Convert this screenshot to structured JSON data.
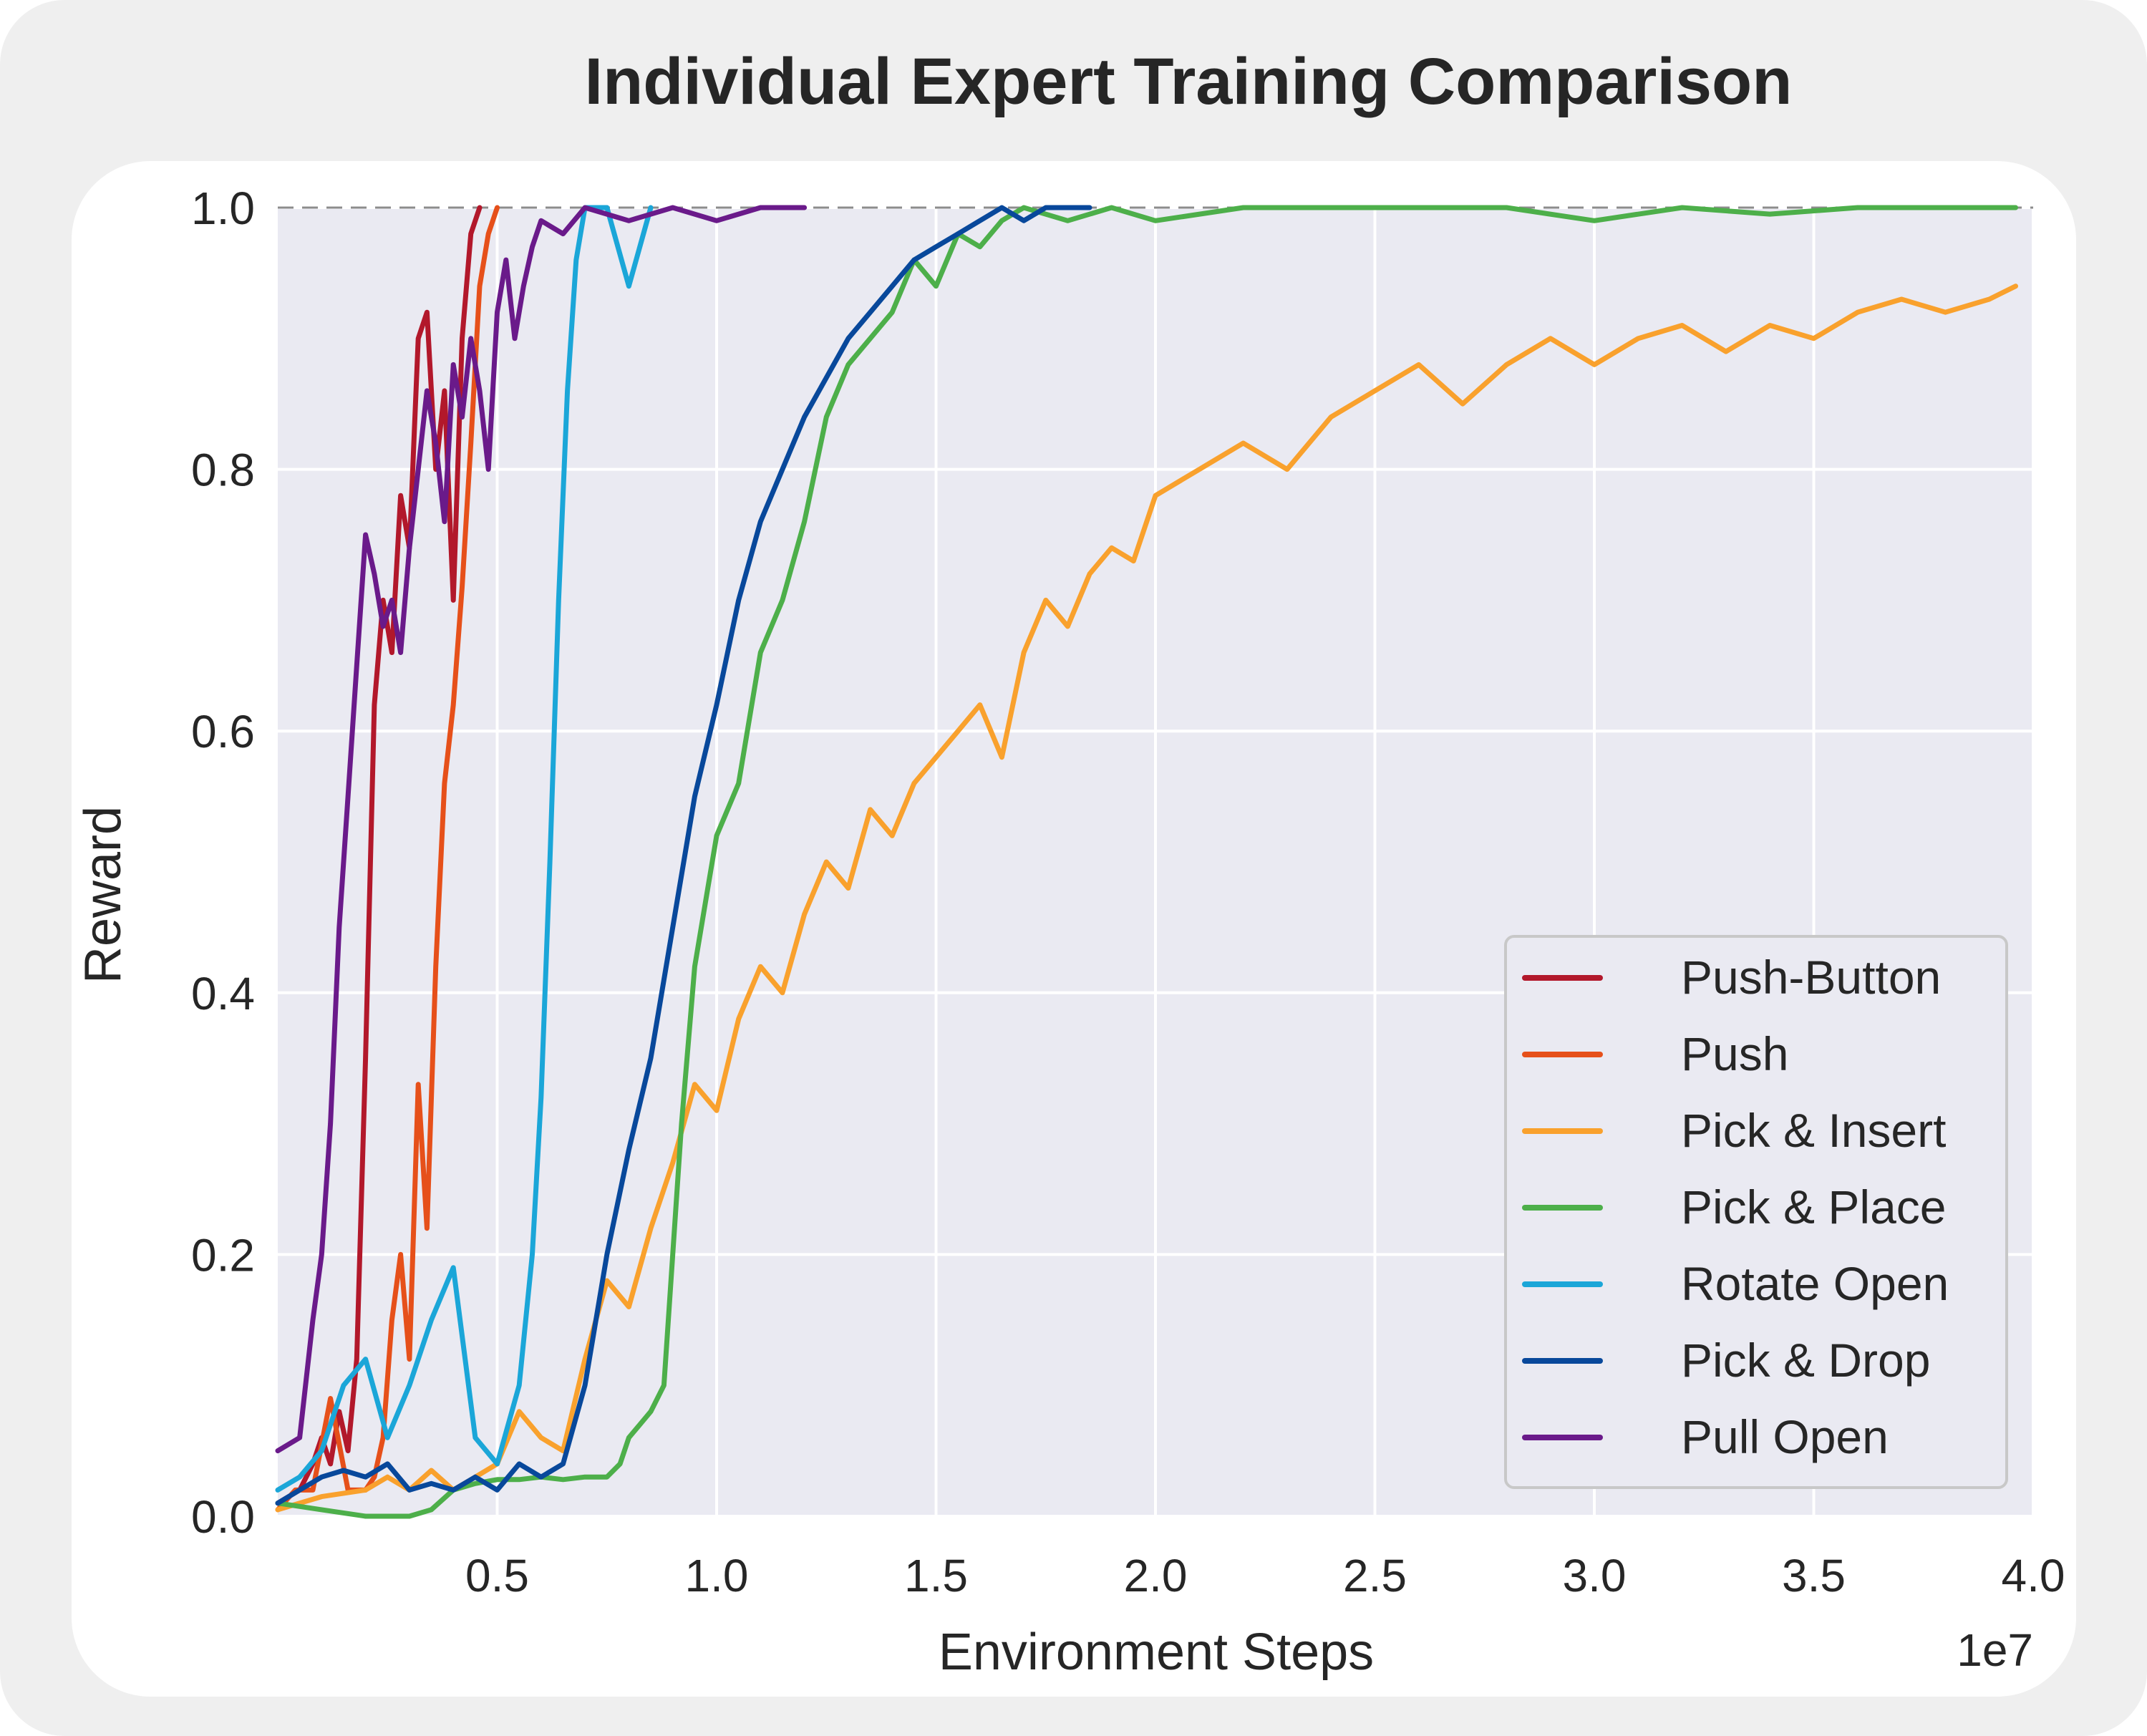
{
  "chart_data": {
    "type": "line",
    "title": "Individual Expert Training Comparison",
    "xlabel": "Environment Steps",
    "ylabel": "Reward",
    "x_offset_label": "1e7",
    "xlim": [
      0.0,
      4.0
    ],
    "ylim": [
      0.0,
      1.0
    ],
    "xticks": [
      "0.5",
      "1.0",
      "1.5",
      "2.0",
      "2.5",
      "3.0",
      "3.5",
      "4.0"
    ],
    "yticks": [
      "0.0",
      "0.2",
      "0.4",
      "0.6",
      "0.8",
      "1.0"
    ],
    "grid": true,
    "legend_position": "lower-right",
    "reference_line": 1.0,
    "series": [
      {
        "name": "Push-Button",
        "color": "#b2182b",
        "points": [
          [
            0.0,
            0.01
          ],
          [
            0.05,
            0.02
          ],
          [
            0.08,
            0.04
          ],
          [
            0.1,
            0.06
          ],
          [
            0.12,
            0.04
          ],
          [
            0.14,
            0.08
          ],
          [
            0.16,
            0.05
          ],
          [
            0.18,
            0.12
          ],
          [
            0.2,
            0.35
          ],
          [
            0.22,
            0.62
          ],
          [
            0.24,
            0.7
          ],
          [
            0.26,
            0.66
          ],
          [
            0.28,
            0.78
          ],
          [
            0.3,
            0.74
          ],
          [
            0.32,
            0.9
          ],
          [
            0.34,
            0.92
          ],
          [
            0.36,
            0.8
          ],
          [
            0.38,
            0.86
          ],
          [
            0.4,
            0.7
          ],
          [
            0.42,
            0.9
          ],
          [
            0.44,
            0.98
          ],
          [
            0.46,
            1.0
          ]
        ]
      },
      {
        "name": "Push",
        "color": "#e6501a",
        "points": [
          [
            0.0,
            0.005
          ],
          [
            0.04,
            0.02
          ],
          [
            0.08,
            0.02
          ],
          [
            0.12,
            0.09
          ],
          [
            0.16,
            0.02
          ],
          [
            0.2,
            0.02
          ],
          [
            0.22,
            0.03
          ],
          [
            0.24,
            0.06
          ],
          [
            0.26,
            0.15
          ],
          [
            0.28,
            0.2
          ],
          [
            0.3,
            0.12
          ],
          [
            0.32,
            0.33
          ],
          [
            0.34,
            0.22
          ],
          [
            0.36,
            0.42
          ],
          [
            0.38,
            0.56
          ],
          [
            0.4,
            0.62
          ],
          [
            0.42,
            0.71
          ],
          [
            0.44,
            0.82
          ],
          [
            0.46,
            0.94
          ],
          [
            0.48,
            0.98
          ],
          [
            0.5,
            1.0
          ]
        ]
      },
      {
        "name": "Pick & Insert",
        "color": "#f9a12d",
        "points": [
          [
            0.0,
            0.005
          ],
          [
            0.1,
            0.015
          ],
          [
            0.2,
            0.02
          ],
          [
            0.25,
            0.03
          ],
          [
            0.3,
            0.02
          ],
          [
            0.35,
            0.035
          ],
          [
            0.4,
            0.02
          ],
          [
            0.45,
            0.03
          ],
          [
            0.5,
            0.04
          ],
          [
            0.55,
            0.08
          ],
          [
            0.6,
            0.06
          ],
          [
            0.65,
            0.05
          ],
          [
            0.7,
            0.12
          ],
          [
            0.75,
            0.18
          ],
          [
            0.8,
            0.16
          ],
          [
            0.85,
            0.22
          ],
          [
            0.9,
            0.27
          ],
          [
            0.95,
            0.33
          ],
          [
            1.0,
            0.31
          ],
          [
            1.05,
            0.38
          ],
          [
            1.1,
            0.42
          ],
          [
            1.15,
            0.4
          ],
          [
            1.2,
            0.46
          ],
          [
            1.25,
            0.5
          ],
          [
            1.3,
            0.48
          ],
          [
            1.35,
            0.54
          ],
          [
            1.4,
            0.52
          ],
          [
            1.45,
            0.56
          ],
          [
            1.5,
            0.58
          ],
          [
            1.55,
            0.6
          ],
          [
            1.6,
            0.62
          ],
          [
            1.65,
            0.58
          ],
          [
            1.7,
            0.66
          ],
          [
            1.75,
            0.7
          ],
          [
            1.8,
            0.68
          ],
          [
            1.85,
            0.72
          ],
          [
            1.9,
            0.74
          ],
          [
            1.95,
            0.73
          ],
          [
            2.0,
            0.78
          ],
          [
            2.1,
            0.8
          ],
          [
            2.2,
            0.82
          ],
          [
            2.3,
            0.8
          ],
          [
            2.4,
            0.84
          ],
          [
            2.5,
            0.86
          ],
          [
            2.6,
            0.88
          ],
          [
            2.7,
            0.85
          ],
          [
            2.8,
            0.88
          ],
          [
            2.9,
            0.9
          ],
          [
            3.0,
            0.88
          ],
          [
            3.1,
            0.9
          ],
          [
            3.2,
            0.91
          ],
          [
            3.3,
            0.89
          ],
          [
            3.4,
            0.91
          ],
          [
            3.5,
            0.9
          ],
          [
            3.6,
            0.92
          ],
          [
            3.7,
            0.93
          ],
          [
            3.8,
            0.92
          ],
          [
            3.9,
            0.93
          ],
          [
            3.96,
            0.94
          ]
        ]
      },
      {
        "name": "Pick & Place",
        "color": "#4daf4a",
        "points": [
          [
            0.0,
            0.01
          ],
          [
            0.1,
            0.005
          ],
          [
            0.2,
            0.0
          ],
          [
            0.3,
            0.0
          ],
          [
            0.35,
            0.005
          ],
          [
            0.4,
            0.02
          ],
          [
            0.45,
            0.025
          ],
          [
            0.5,
            0.028
          ],
          [
            0.55,
            0.028
          ],
          [
            0.6,
            0.03
          ],
          [
            0.65,
            0.028
          ],
          [
            0.7,
            0.03
          ],
          [
            0.75,
            0.03
          ],
          [
            0.78,
            0.04
          ],
          [
            0.8,
            0.06
          ],
          [
            0.85,
            0.08
          ],
          [
            0.88,
            0.1
          ],
          [
            0.9,
            0.2
          ],
          [
            0.92,
            0.3
          ],
          [
            0.95,
            0.42
          ],
          [
            0.98,
            0.48
          ],
          [
            1.0,
            0.52
          ],
          [
            1.05,
            0.56
          ],
          [
            1.1,
            0.66
          ],
          [
            1.15,
            0.7
          ],
          [
            1.2,
            0.76
          ],
          [
            1.25,
            0.84
          ],
          [
            1.3,
            0.88
          ],
          [
            1.35,
            0.9
          ],
          [
            1.4,
            0.92
          ],
          [
            1.45,
            0.96
          ],
          [
            1.5,
            0.94
          ],
          [
            1.55,
            0.98
          ],
          [
            1.6,
            0.97
          ],
          [
            1.65,
            0.99
          ],
          [
            1.7,
            1.0
          ],
          [
            1.8,
            0.99
          ],
          [
            1.9,
            1.0
          ],
          [
            2.0,
            0.99
          ],
          [
            2.2,
            1.0
          ],
          [
            2.4,
            1.0
          ],
          [
            2.6,
            1.0
          ],
          [
            2.8,
            1.0
          ],
          [
            3.0,
            0.99
          ],
          [
            3.2,
            1.0
          ],
          [
            3.4,
            0.995
          ],
          [
            3.6,
            1.0
          ],
          [
            3.8,
            1.0
          ],
          [
            3.96,
            1.0
          ]
        ]
      },
      {
        "name": "Rotate Open",
        "color": "#1ba6d8",
        "points": [
          [
            0.0,
            0.02
          ],
          [
            0.05,
            0.03
          ],
          [
            0.1,
            0.05
          ],
          [
            0.15,
            0.1
          ],
          [
            0.2,
            0.12
          ],
          [
            0.25,
            0.06
          ],
          [
            0.3,
            0.1
          ],
          [
            0.35,
            0.15
          ],
          [
            0.4,
            0.19
          ],
          [
            0.45,
            0.06
          ],
          [
            0.5,
            0.04
          ],
          [
            0.55,
            0.1
          ],
          [
            0.58,
            0.2
          ],
          [
            0.6,
            0.32
          ],
          [
            0.62,
            0.5
          ],
          [
            0.64,
            0.7
          ],
          [
            0.66,
            0.86
          ],
          [
            0.68,
            0.96
          ],
          [
            0.7,
            1.0
          ],
          [
            0.75,
            1.0
          ],
          [
            0.8,
            0.94
          ],
          [
            0.85,
            1.0
          ]
        ]
      },
      {
        "name": "Pick & Drop",
        "color": "#08489b",
        "points": [
          [
            0.0,
            0.01
          ],
          [
            0.05,
            0.02
          ],
          [
            0.1,
            0.03
          ],
          [
            0.15,
            0.035
          ],
          [
            0.2,
            0.03
          ],
          [
            0.25,
            0.04
          ],
          [
            0.3,
            0.02
          ],
          [
            0.35,
            0.025
          ],
          [
            0.4,
            0.02
          ],
          [
            0.45,
            0.03
          ],
          [
            0.5,
            0.02
          ],
          [
            0.55,
            0.04
          ],
          [
            0.6,
            0.03
          ],
          [
            0.65,
            0.04
          ],
          [
            0.7,
            0.1
          ],
          [
            0.75,
            0.2
          ],
          [
            0.8,
            0.28
          ],
          [
            0.85,
            0.35
          ],
          [
            0.9,
            0.45
          ],
          [
            0.95,
            0.55
          ],
          [
            1.0,
            0.62
          ],
          [
            1.05,
            0.7
          ],
          [
            1.1,
            0.76
          ],
          [
            1.15,
            0.8
          ],
          [
            1.2,
            0.84
          ],
          [
            1.25,
            0.87
          ],
          [
            1.3,
            0.9
          ],
          [
            1.35,
            0.92
          ],
          [
            1.4,
            0.94
          ],
          [
            1.45,
            0.96
          ],
          [
            1.5,
            0.97
          ],
          [
            1.55,
            0.98
          ],
          [
            1.6,
            0.99
          ],
          [
            1.65,
            1.0
          ],
          [
            1.7,
            0.99
          ],
          [
            1.75,
            1.0
          ],
          [
            1.8,
            1.0
          ],
          [
            1.85,
            1.0
          ]
        ]
      },
      {
        "name": "Pull Open",
        "color": "#6a1a8a",
        "points": [
          [
            0.0,
            0.05
          ],
          [
            0.05,
            0.06
          ],
          [
            0.08,
            0.15
          ],
          [
            0.1,
            0.2
          ],
          [
            0.12,
            0.3
          ],
          [
            0.14,
            0.45
          ],
          [
            0.16,
            0.55
          ],
          [
            0.18,
            0.65
          ],
          [
            0.2,
            0.75
          ],
          [
            0.22,
            0.72
          ],
          [
            0.24,
            0.68
          ],
          [
            0.26,
            0.7
          ],
          [
            0.28,
            0.66
          ],
          [
            0.3,
            0.74
          ],
          [
            0.32,
            0.8
          ],
          [
            0.34,
            0.86
          ],
          [
            0.36,
            0.82
          ],
          [
            0.38,
            0.76
          ],
          [
            0.4,
            0.88
          ],
          [
            0.42,
            0.84
          ],
          [
            0.44,
            0.9
          ],
          [
            0.46,
            0.86
          ],
          [
            0.48,
            0.8
          ],
          [
            0.5,
            0.92
          ],
          [
            0.52,
            0.96
          ],
          [
            0.54,
            0.9
          ],
          [
            0.56,
            0.94
          ],
          [
            0.58,
            0.97
          ],
          [
            0.6,
            0.99
          ],
          [
            0.65,
            0.98
          ],
          [
            0.7,
            1.0
          ],
          [
            0.8,
            0.99
          ],
          [
            0.9,
            1.0
          ],
          [
            1.0,
            0.99
          ],
          [
            1.1,
            1.0
          ],
          [
            1.2,
            1.0
          ]
        ]
      }
    ]
  }
}
